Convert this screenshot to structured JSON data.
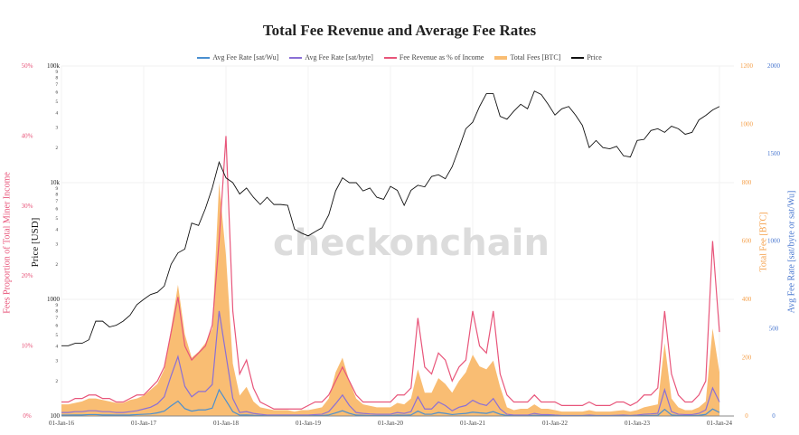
{
  "chart_data": {
    "type": "line",
    "title": "Total Fee Revenue and Average Fee Rates",
    "watermark": "checkonchain",
    "x_ticks": [
      "01-Jan-16",
      "01-Jan-17",
      "01-Jan-18",
      "01-Jan-19",
      "01-Jan-20",
      "01-Jan-21",
      "01-Jan-22",
      "01-Jan-23",
      "01-Jan-24"
    ],
    "x_range": [
      "2016-01",
      "2024-01"
    ],
    "x_frequency": "monthly",
    "axes": {
      "fee_pct": {
        "title": "Fees Proportion of Total Miner Income",
        "range": [
          0,
          50
        ],
        "ticks": [
          "0%",
          "10%",
          "20%",
          "30%",
          "40%",
          "50%"
        ],
        "color": "#e8557a"
      },
      "price": {
        "title": "Price [USD]",
        "scale": "log",
        "range": [
          100,
          100000
        ],
        "major_ticks": [
          "100",
          "1000",
          "10k",
          "100k"
        ],
        "minor_ticks": [
          "2",
          "3",
          "4",
          "5",
          "6",
          "7",
          "8",
          "9"
        ],
        "color": "#111111"
      },
      "total_fee": {
        "title": "Total Fee [BTC]",
        "range": [
          0,
          1200
        ],
        "ticks": [
          "0",
          "200",
          "400",
          "600",
          "800",
          "1000",
          "1200"
        ],
        "color": "#f5a04a"
      },
      "fee_rate": {
        "title": "Avg Fee Rate [sat/byte or sat/Wu]",
        "range": [
          0,
          2000
        ],
        "ticks": [
          "0",
          "500",
          "1000",
          "1500",
          "2000"
        ],
        "color": "#4a78d0"
      }
    },
    "grid": true,
    "legend_position": "top",
    "series": [
      {
        "name": "Avg Fee Rate [sat/Wu]",
        "axis": "fee_rate",
        "color": "#4a8fd0",
        "kind": "line",
        "values": [
          5,
          5,
          6,
          6,
          8,
          8,
          6,
          6,
          5,
          5,
          6,
          8,
          10,
          12,
          18,
          28,
          58,
          85,
          42,
          28,
          35,
          35,
          45,
          150,
          88,
          25,
          5,
          6,
          4,
          3,
          1,
          1,
          1,
          1,
          1,
          1,
          1,
          2,
          3,
          6,
          18,
          30,
          15,
          5,
          4,
          3,
          3,
          3,
          3,
          5,
          4,
          6,
          28,
          10,
          10,
          20,
          15,
          8,
          12,
          15,
          22,
          18,
          15,
          25,
          10,
          3,
          1,
          1,
          1,
          4,
          2,
          2,
          1,
          1,
          1,
          1,
          1,
          1,
          1,
          1,
          1,
          1,
          1,
          1,
          1,
          3,
          3,
          4,
          38,
          6,
          3,
          2,
          2,
          4,
          9,
          40,
          20
        ]
      },
      {
        "name": "Avg Fee Rate [sat/byte]",
        "axis": "fee_rate",
        "color": "#8a6fd6",
        "kind": "line",
        "values": [
          20,
          20,
          25,
          25,
          30,
          30,
          25,
          25,
          20,
          20,
          25,
          30,
          40,
          50,
          70,
          110,
          230,
          340,
          170,
          110,
          140,
          140,
          180,
          600,
          350,
          100,
          20,
          25,
          15,
          10,
          5,
          5,
          5,
          5,
          5,
          5,
          5,
          8,
          10,
          25,
          70,
          120,
          60,
          20,
          15,
          12,
          10,
          10,
          10,
          20,
          15,
          25,
          110,
          40,
          40,
          80,
          60,
          30,
          50,
          60,
          90,
          70,
          60,
          100,
          40,
          10,
          5,
          5,
          5,
          15,
          8,
          8,
          5,
          3,
          3,
          3,
          3,
          5,
          3,
          3,
          3,
          4,
          5,
          3,
          5,
          10,
          12,
          15,
          150,
          25,
          10,
          8,
          8,
          15,
          35,
          160,
          80
        ]
      },
      {
        "name": "Fee Revenue as % of Income",
        "axis": "fee_pct",
        "color": "#e8557a",
        "kind": "line",
        "values": [
          2,
          2,
          2.5,
          2.5,
          3,
          3,
          2.5,
          2.5,
          2,
          2,
          2.5,
          3,
          3,
          4,
          5,
          7,
          12,
          17,
          10,
          8,
          9,
          10,
          13,
          25,
          40,
          15,
          6,
          8,
          4,
          2,
          1.5,
          1,
          1,
          1,
          1,
          1,
          1.5,
          2,
          2,
          3,
          5,
          7,
          5,
          3,
          2,
          2,
          2,
          2,
          2,
          3,
          3,
          4,
          14,
          7,
          6,
          9,
          8,
          5,
          7,
          8,
          15,
          10,
          9,
          15,
          6,
          3,
          2,
          2,
          2,
          3,
          2,
          2,
          2,
          1.5,
          1.5,
          1.5,
          1.5,
          2,
          1.5,
          1.5,
          1.5,
          2,
          2,
          1.5,
          2,
          3,
          3,
          4,
          15,
          6,
          3,
          2,
          2,
          3,
          5,
          25,
          12
        ]
      },
      {
        "name": "Total Fees [BTC]",
        "axis": "total_fee",
        "color": "#f9bd73",
        "kind": "area",
        "values": [
          40,
          40,
          45,
          50,
          60,
          60,
          55,
          50,
          45,
          45,
          55,
          60,
          70,
          90,
          110,
          160,
          300,
          450,
          280,
          200,
          220,
          250,
          300,
          800,
          550,
          180,
          70,
          100,
          50,
          30,
          25,
          20,
          20,
          20,
          15,
          20,
          20,
          25,
          30,
          60,
          150,
          200,
          120,
          60,
          40,
          35,
          30,
          30,
          30,
          45,
          40,
          60,
          160,
          80,
          80,
          130,
          110,
          80,
          120,
          150,
          210,
          170,
          160,
          190,
          100,
          30,
          20,
          25,
          25,
          40,
          25,
          25,
          20,
          15,
          15,
          15,
          15,
          20,
          15,
          15,
          15,
          18,
          20,
          15,
          20,
          30,
          35,
          40,
          250,
          60,
          30,
          20,
          20,
          30,
          50,
          300,
          150
        ]
      },
      {
        "name": "Price",
        "axis": "price",
        "color": "#111111",
        "kind": "line",
        "values": [
          400,
          400,
          420,
          420,
          450,
          650,
          650,
          580,
          600,
          650,
          730,
          900,
          1000,
          1100,
          1150,
          1300,
          2000,
          2500,
          2700,
          4500,
          4300,
          6000,
          9000,
          15000,
          11000,
          10000,
          8000,
          9000,
          7500,
          6500,
          7500,
          6500,
          6500,
          6400,
          4000,
          3700,
          3500,
          3800,
          4100,
          5300,
          8500,
          11000,
          10000,
          10000,
          8500,
          9000,
          7500,
          7200,
          9300,
          8600,
          6400,
          8600,
          9500,
          9200,
          11300,
          11700,
          10800,
          13700,
          19700,
          29000,
          33000,
          45000,
          58000,
          58000,
          37000,
          35000,
          41000,
          47000,
          43000,
          61000,
          57000,
          47000,
          38000,
          43000,
          45000,
          38000,
          31000,
          20000,
          23000,
          20000,
          19500,
          20500,
          17000,
          16600,
          23000,
          23500,
          28000,
          29000,
          27000,
          30500,
          29000,
          26000,
          27000,
          34500,
          37700,
          42000,
          45000
        ]
      }
    ]
  }
}
